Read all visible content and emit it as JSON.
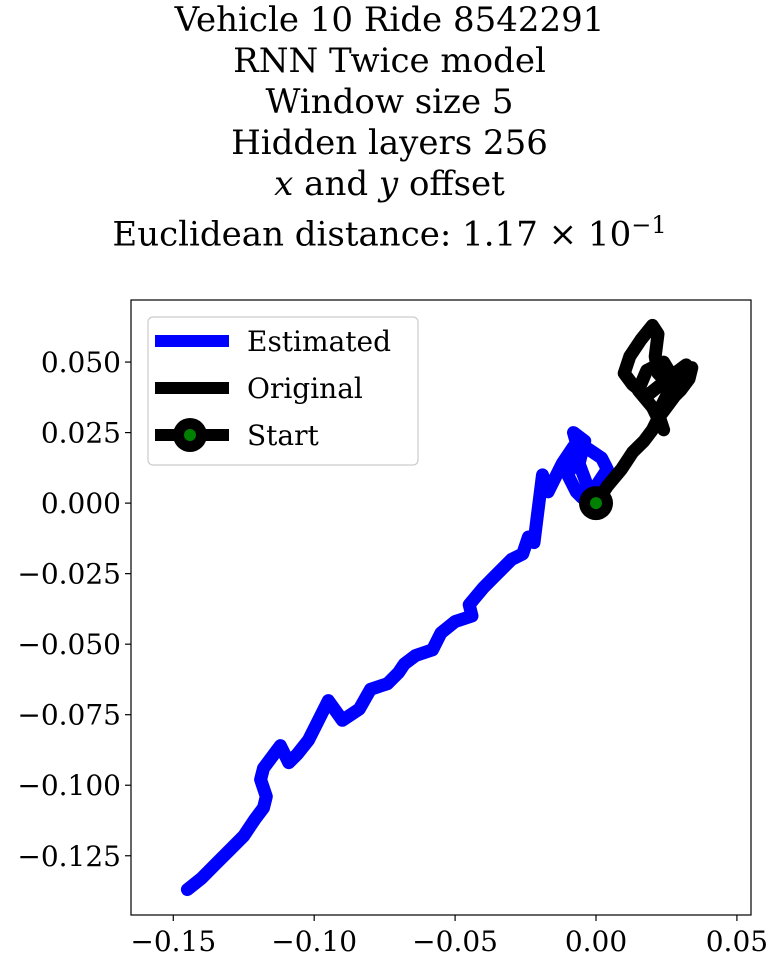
{
  "title": {
    "line1": "Vehicle 10 Ride 8542291",
    "line2": "RNN Twice model",
    "line3": "Window size 5",
    "line4": "Hidden layers 256",
    "line5_x": "x",
    "line5_and": " and ",
    "line5_y": "y",
    "line5_rest": " offset",
    "line6_prefix": "Euclidean distance: ",
    "line6_mantissa": "1.17",
    "line6_times": " × 10",
    "line6_exp": "−1"
  },
  "colors": {
    "estimated": "#0000ff",
    "original": "#000000",
    "start_outer": "#000000",
    "start_inner": "#008000"
  },
  "chart_data": {
    "type": "line",
    "xlim": [
      -0.165,
      0.055
    ],
    "ylim": [
      -0.146,
      0.072
    ],
    "xticks": [
      -0.15,
      -0.1,
      -0.05,
      0.0,
      0.05
    ],
    "xtick_labels": [
      "−0.15",
      "−0.10",
      "−0.05",
      "0.00",
      "0.05"
    ],
    "yticks": [
      0.05,
      0.025,
      0.0,
      -0.025,
      -0.05,
      -0.075,
      -0.1,
      -0.125
    ],
    "ytick_labels": [
      "0.050",
      "0.025",
      "0.000",
      "−0.025",
      "−0.050",
      "−0.075",
      "−0.100",
      "−0.125"
    ],
    "legend": {
      "position": "upper-left",
      "entries": [
        "Estimated",
        "Original",
        "Start"
      ]
    },
    "series": [
      {
        "name": "Estimated",
        "x": [
          0.0,
          -0.003,
          -0.006,
          -0.004,
          -0.008,
          -0.006,
          -0.01,
          -0.007,
          -0.005,
          0.0,
          0.004,
          0.002,
          -0.004,
          -0.008,
          -0.012,
          -0.015,
          -0.017,
          -0.019,
          -0.021,
          -0.022,
          -0.024,
          -0.026,
          -0.03,
          -0.036,
          -0.04,
          -0.045,
          -0.044,
          -0.05,
          -0.055,
          -0.058,
          -0.064,
          -0.068,
          -0.07,
          -0.074,
          -0.08,
          -0.084,
          -0.09,
          -0.095,
          -0.099,
          -0.102,
          -0.106,
          -0.109,
          -0.112,
          -0.115,
          -0.118,
          -0.119,
          -0.117,
          -0.118,
          -0.121,
          -0.125,
          -0.13,
          -0.135,
          -0.14,
          -0.145
        ],
        "y": [
          0.0,
          0.006,
          0.014,
          0.022,
          0.025,
          0.018,
          0.01,
          0.004,
          0.002,
          0.006,
          0.012,
          0.016,
          0.02,
          0.02,
          0.014,
          0.008,
          0.004,
          0.01,
          -0.006,
          -0.014,
          -0.012,
          -0.018,
          -0.02,
          -0.026,
          -0.03,
          -0.036,
          -0.04,
          -0.042,
          -0.046,
          -0.052,
          -0.054,
          -0.057,
          -0.06,
          -0.064,
          -0.066,
          -0.073,
          -0.077,
          -0.07,
          -0.078,
          -0.084,
          -0.089,
          -0.092,
          -0.086,
          -0.09,
          -0.094,
          -0.098,
          -0.104,
          -0.108,
          -0.112,
          -0.118,
          -0.123,
          -0.128,
          -0.133,
          -0.137
        ]
      },
      {
        "name": "Original",
        "x": [
          0.0,
          0.004,
          0.009,
          0.013,
          0.017,
          0.02,
          0.022,
          0.025,
          0.028,
          0.03,
          0.033,
          0.034,
          0.031,
          0.026,
          0.022,
          0.021,
          0.022,
          0.02,
          0.016,
          0.012,
          0.01,
          0.013,
          0.018,
          0.023,
          0.028,
          0.032,
          0.03,
          0.025,
          0.022,
          0.024,
          0.02,
          0.015,
          0.018,
          0.024,
          0.027
        ],
        "y": [
          0.0,
          0.006,
          0.012,
          0.018,
          0.022,
          0.026,
          0.03,
          0.034,
          0.038,
          0.04,
          0.044,
          0.048,
          0.046,
          0.042,
          0.046,
          0.052,
          0.06,
          0.063,
          0.058,
          0.052,
          0.046,
          0.042,
          0.038,
          0.042,
          0.046,
          0.049,
          0.043,
          0.038,
          0.032,
          0.026,
          0.034,
          0.04,
          0.047,
          0.05,
          0.045
        ]
      }
    ],
    "start_point": {
      "x": 0.0,
      "y": 0.0
    }
  }
}
